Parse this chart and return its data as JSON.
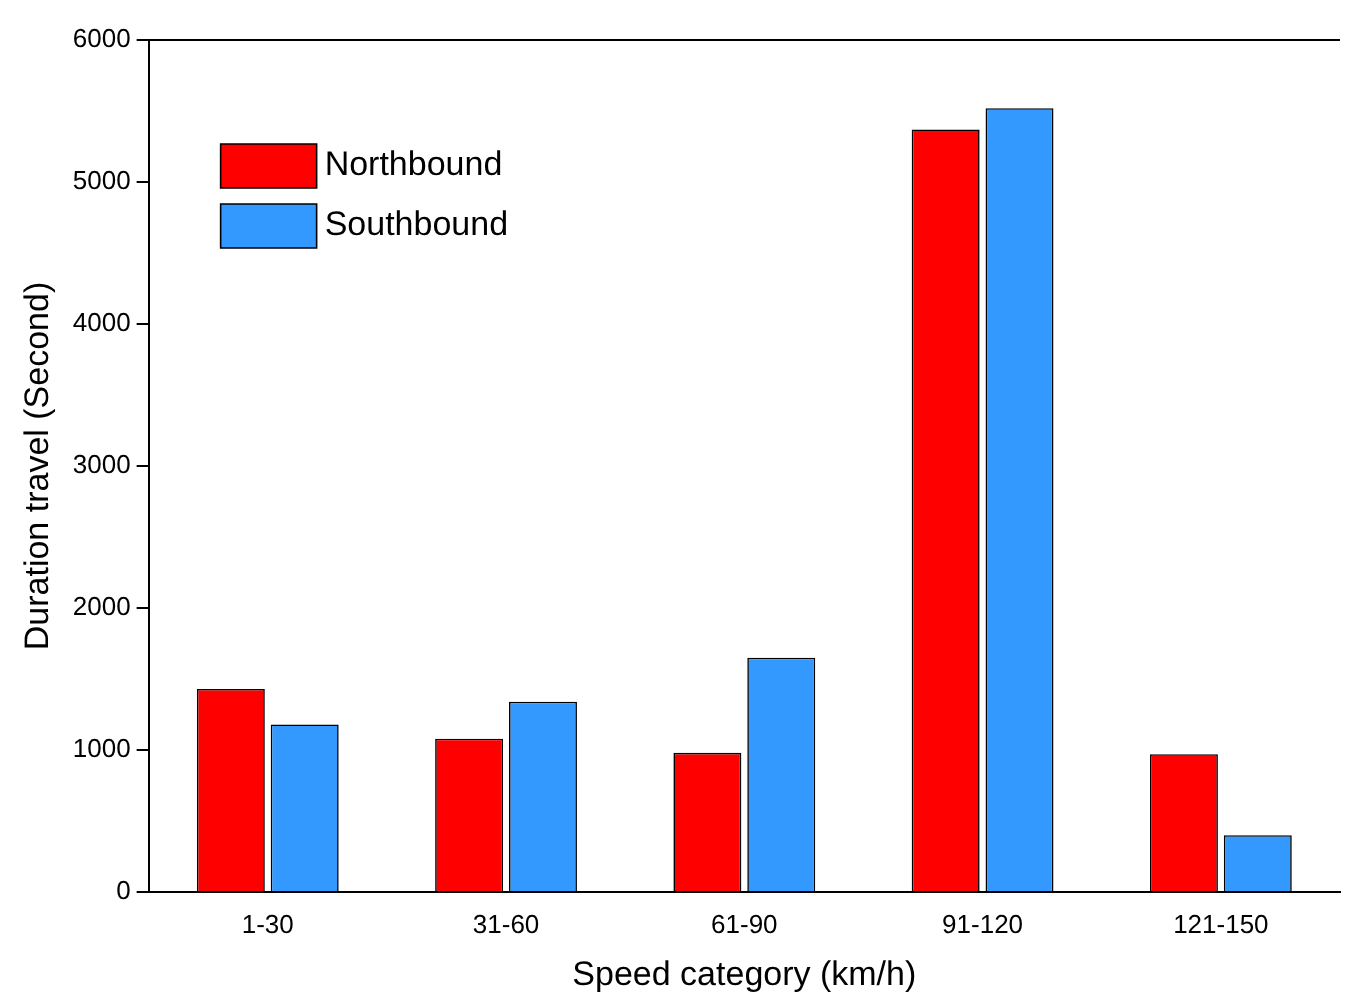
{
  "chart_data": {
    "type": "bar",
    "xlabel": "Speed category (km/h)",
    "ylabel": "Duration travel (Second)",
    "categories": [
      "1-30",
      "31-60",
      "61-90",
      "91-120",
      "121-150"
    ],
    "series": [
      {
        "name": "Northbound",
        "color": "#ff0000",
        "values": [
          1430,
          1080,
          980,
          5370,
          970
        ]
      },
      {
        "name": "Southbound",
        "color": "#3399ff",
        "values": [
          1180,
          1340,
          1650,
          5520,
          400
        ]
      }
    ],
    "ylim": [
      0,
      6000
    ],
    "yticks": [
      0,
      1000,
      2000,
      3000,
      4000,
      5000,
      6000
    ],
    "grid": false,
    "legend": "top left"
  }
}
